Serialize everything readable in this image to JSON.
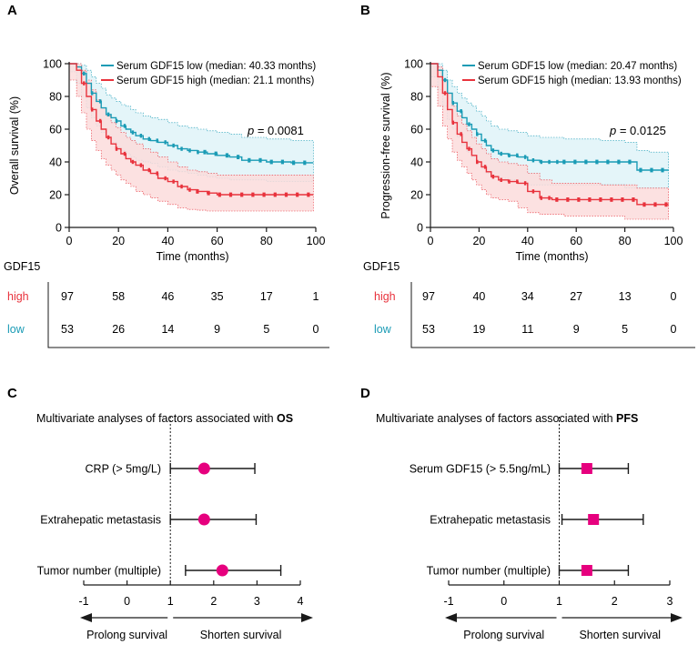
{
  "panels": {
    "A": "A",
    "B": "B",
    "C": "C",
    "D": "D"
  },
  "colors": {
    "low": "#1a9bb5",
    "high": "#e8323c",
    "low_band": "#dff3f8",
    "high_band": "#fbdcdc",
    "overlap_band": "#e6d8d8",
    "forest_os": "#e6007e",
    "forest_pfs": "#e6007e",
    "axis": "#1a1a1a"
  },
  "chart_data": [
    {
      "id": "A",
      "type": "line",
      "title": "",
      "xlabel": "Time (months)",
      "ylabel": "Overall survival (%)",
      "xlim": [
        0,
        100
      ],
      "ylim": [
        0,
        100
      ],
      "xticks": [
        "0",
        "20",
        "40",
        "60",
        "80",
        "100"
      ],
      "yticks": [
        "0",
        "20",
        "40",
        "60",
        "80",
        "100"
      ],
      "pvalue_label": "p",
      "pvalue_text": " = 0.0081",
      "legend": [
        "Serum GDF15 low (median: 40.33 months)",
        "Serum GDF15 high (median: 21.1 months)"
      ],
      "series": [
        {
          "name": "Serum GDF15 low",
          "group": "low",
          "x": [
            0,
            3,
            5,
            7,
            9,
            11,
            13,
            15,
            17,
            19,
            21,
            23,
            25,
            27,
            30,
            33,
            36,
            40,
            44,
            48,
            52,
            56,
            60,
            65,
            70,
            80,
            90,
            99
          ],
          "y": [
            100,
            98,
            94,
            88,
            82,
            77,
            73,
            69,
            67,
            65,
            62,
            60,
            58,
            56,
            54,
            53,
            52,
            50,
            48,
            47,
            46,
            45,
            44,
            43,
            41,
            40,
            39.5,
            39.5
          ],
          "lower": [
            100,
            95,
            88,
            80,
            73,
            67,
            62,
            58,
            55,
            52,
            49,
            47,
            45,
            43,
            41,
            40,
            39,
            37,
            35,
            34,
            33,
            32,
            31,
            30,
            29,
            29,
            28,
            28
          ],
          "upper": [
            100,
            100,
            99,
            96,
            92,
            88,
            85,
            81,
            79,
            77,
            75,
            74,
            72,
            70,
            68,
            67,
            66,
            64,
            62,
            61,
            60,
            59,
            58,
            57,
            55,
            54,
            53,
            53
          ]
        },
        {
          "name": "Serum GDF15 high",
          "group": "high",
          "x": [
            0,
            3,
            5,
            7,
            9,
            11,
            13,
            15,
            17,
            19,
            21,
            23,
            25,
            27,
            30,
            33,
            36,
            40,
            44,
            48,
            52,
            56,
            60,
            70,
            80,
            90,
            99
          ],
          "y": [
            100,
            96,
            88,
            80,
            72,
            65,
            60,
            55,
            51,
            48,
            45,
            42,
            40,
            38,
            35,
            33,
            30,
            28,
            25,
            23,
            22,
            21,
            20,
            20,
            20,
            20,
            20
          ],
          "lower": [
            100,
            90,
            80,
            70,
            60,
            53,
            47,
            42,
            38,
            35,
            32,
            29,
            27,
            25,
            22,
            20,
            18,
            16,
            14,
            12,
            11,
            10.5,
            10,
            10,
            10,
            10,
            10
          ],
          "upper": [
            100,
            100,
            96,
            90,
            84,
            78,
            73,
            68,
            64,
            61,
            58,
            55,
            53,
            51,
            48,
            46,
            43,
            40,
            37,
            35,
            34,
            33,
            32,
            32,
            32,
            32,
            32
          ]
        }
      ],
      "risk_table": {
        "header": "GDF15",
        "rows": [
          {
            "label": "high",
            "group": "high",
            "values": [
              "97",
              "58",
              "46",
              "35",
              "17",
              "1"
            ]
          },
          {
            "label": "low",
            "group": "low",
            "values": [
              "53",
              "26",
              "14",
              "9",
              "5",
              "0"
            ]
          }
        ]
      }
    },
    {
      "id": "B",
      "type": "line",
      "title": "",
      "xlabel": "Time (months)",
      "ylabel": "Progression-free survival (%)",
      "xlim": [
        0,
        100
      ],
      "ylim": [
        0,
        100
      ],
      "xticks": [
        "0",
        "20",
        "40",
        "60",
        "80",
        "100"
      ],
      "yticks": [
        "0",
        "20",
        "40",
        "60",
        "80",
        "100"
      ],
      "pvalue_label": "p",
      "pvalue_text": " = 0.0125",
      "legend": [
        "Serum GDF15 low (median: 20.47 months)",
        "Serum GDF15 high (median: 13.93 months)"
      ],
      "series": [
        {
          "name": "Serum GDF15 low",
          "group": "low",
          "x": [
            0,
            3,
            5,
            7,
            9,
            11,
            13,
            15,
            17,
            19,
            21,
            23,
            25,
            28,
            32,
            36,
            40,
            45,
            50,
            55,
            60,
            70,
            80,
            85,
            90,
            98
          ],
          "y": [
            100,
            96,
            90,
            82,
            76,
            71,
            67,
            63,
            60,
            57,
            53,
            50,
            47,
            45,
            44,
            43,
            41,
            40,
            40,
            40,
            40,
            40,
            40,
            35,
            35,
            35
          ],
          "lower": [
            100,
            92,
            84,
            74,
            66,
            60,
            55,
            50,
            46,
            43,
            39,
            36,
            33,
            31,
            30,
            29,
            27,
            26,
            26,
            26,
            26,
            26,
            26,
            24,
            24,
            24
          ],
          "upper": [
            100,
            100,
            96,
            90,
            86,
            82,
            79,
            76,
            74,
            71,
            68,
            65,
            62,
            60,
            59,
            58,
            56,
            55,
            55,
            54,
            54,
            53,
            52,
            47,
            46,
            46
          ]
        },
        {
          "name": "Serum GDF15 high",
          "group": "high",
          "x": [
            0,
            3,
            5,
            7,
            9,
            11,
            13,
            15,
            17,
            19,
            21,
            23,
            25,
            28,
            32,
            36,
            40,
            45,
            50,
            55,
            60,
            70,
            80,
            85,
            90,
            98
          ],
          "y": [
            100,
            92,
            82,
            72,
            64,
            57,
            52,
            48,
            44,
            40,
            37,
            34,
            31,
            29,
            28,
            27,
            22,
            18,
            17,
            17,
            17,
            17,
            17,
            14,
            14,
            14
          ],
          "lower": [
            100,
            86,
            74,
            62,
            54,
            46,
            41,
            37,
            33,
            29,
            26,
            23,
            20,
            18,
            17,
            16,
            12,
            9,
            8,
            8,
            7,
            7,
            7,
            5,
            5,
            5
          ],
          "upper": [
            100,
            98,
            90,
            82,
            74,
            68,
            63,
            59,
            55,
            51,
            48,
            45,
            42,
            40,
            39,
            38,
            33,
            29,
            27,
            27,
            27,
            26,
            26,
            24,
            24,
            24
          ]
        }
      ],
      "risk_table": {
        "header": "GDF15",
        "rows": [
          {
            "label": "high",
            "group": "high",
            "values": [
              "97",
              "40",
              "34",
              "27",
              "13",
              "0"
            ]
          },
          {
            "label": "low",
            "group": "low",
            "values": [
              "53",
              "19",
              "11",
              "9",
              "5",
              "0"
            ]
          }
        ]
      }
    },
    {
      "id": "C",
      "type": "scatter",
      "subtype": "forest",
      "title_prefix": "Multivariate analyses of factors associated with ",
      "title_bold": "OS",
      "xlim": [
        -1,
        4
      ],
      "xticks": [
        -1,
        0,
        1,
        2,
        3,
        4
      ],
      "reference_line": 1,
      "marker": "circle",
      "arrow_left": "Prolong survival",
      "arrow_right": "Shorten survival",
      "factors": [
        {
          "label": "CRP (> 5mg/L)",
          "estimate": 1.78,
          "lower": 1.0,
          "upper": 2.95
        },
        {
          "label": "Extrahepatic metastasis",
          "estimate": 1.78,
          "lower": 1.0,
          "upper": 2.98
        },
        {
          "label": "Tumor number (multiple)",
          "estimate": 2.2,
          "lower": 1.35,
          "upper": 3.55
        }
      ]
    },
    {
      "id": "D",
      "type": "scatter",
      "subtype": "forest",
      "title_prefix": "Multivariate analyses of factors associated with ",
      "title_bold": "PFS",
      "xlim": [
        -1,
        3
      ],
      "xticks": [
        -1,
        0,
        1,
        2,
        3
      ],
      "reference_line": 1,
      "marker": "square",
      "arrow_left": "Prolong survival",
      "arrow_right": "Shorten survival",
      "factors": [
        {
          "label": "Serum GDF15 (> 5.5ng/mL)",
          "estimate": 1.5,
          "lower": 1.0,
          "upper": 2.25
        },
        {
          "label": "Extrahepatic metastasis",
          "estimate": 1.62,
          "lower": 1.05,
          "upper": 2.52
        },
        {
          "label": "Tumor number (multiple)",
          "estimate": 1.5,
          "lower": 1.0,
          "upper": 2.25
        }
      ]
    }
  ]
}
